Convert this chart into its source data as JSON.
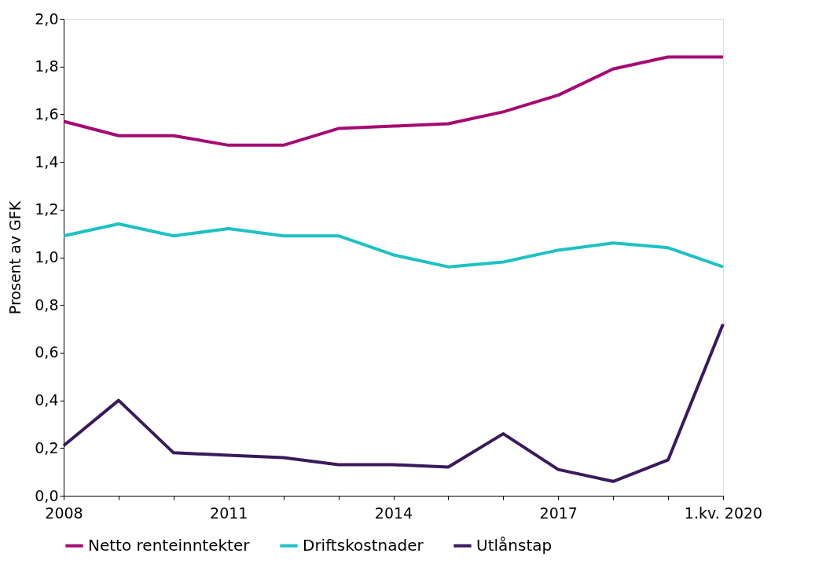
{
  "chart_data": {
    "type": "line",
    "ylabel": "Prosent av GFK",
    "categories": [
      "2008",
      null,
      null,
      "2011",
      null,
      null,
      "2014",
      null,
      null,
      "2017",
      null,
      null,
      "1.kv. 2020"
    ],
    "series": [
      {
        "name": "Netto renteinntekter",
        "color": "#a50a72",
        "values": [
          1.57,
          1.51,
          1.51,
          1.47,
          1.47,
          1.54,
          1.55,
          1.56,
          1.61,
          1.68,
          1.79,
          1.84,
          1.84
        ]
      },
      {
        "name": "Driftskostnader",
        "color": "#1fc1c3",
        "values": [
          1.09,
          1.14,
          1.09,
          1.12,
          1.09,
          1.09,
          1.01,
          0.96,
          0.98,
          1.03,
          1.06,
          1.04,
          0.96
        ]
      },
      {
        "name": "Utlånstap",
        "color": "#3a1a5c",
        "values": [
          0.21,
          0.4,
          0.18,
          0.17,
          0.16,
          0.13,
          0.13,
          0.12,
          0.26,
          0.11,
          0.06,
          0.15,
          0.72
        ]
      }
    ],
    "ylim": [
      0,
      2.0
    ],
    "yticks": [
      {
        "value": 0,
        "label": "0,0"
      },
      {
        "value": 0.2,
        "label": "0,2"
      },
      {
        "value": 0.4,
        "label": "0,4"
      },
      {
        "value": 0.6,
        "label": "0,6"
      },
      {
        "value": 0.8,
        "label": "0,8"
      },
      {
        "value": 1.0,
        "label": "1,0"
      },
      {
        "value": 1.2,
        "label": "1,2"
      },
      {
        "value": 1.4,
        "label": "1,4"
      },
      {
        "value": 1.6,
        "label": "1,6"
      },
      {
        "value": 1.8,
        "label": "1,8"
      },
      {
        "value": 2.0,
        "label": "2,0"
      }
    ],
    "grid": false,
    "legend": "bottom",
    "marker": "none",
    "line_style": "solid"
  }
}
